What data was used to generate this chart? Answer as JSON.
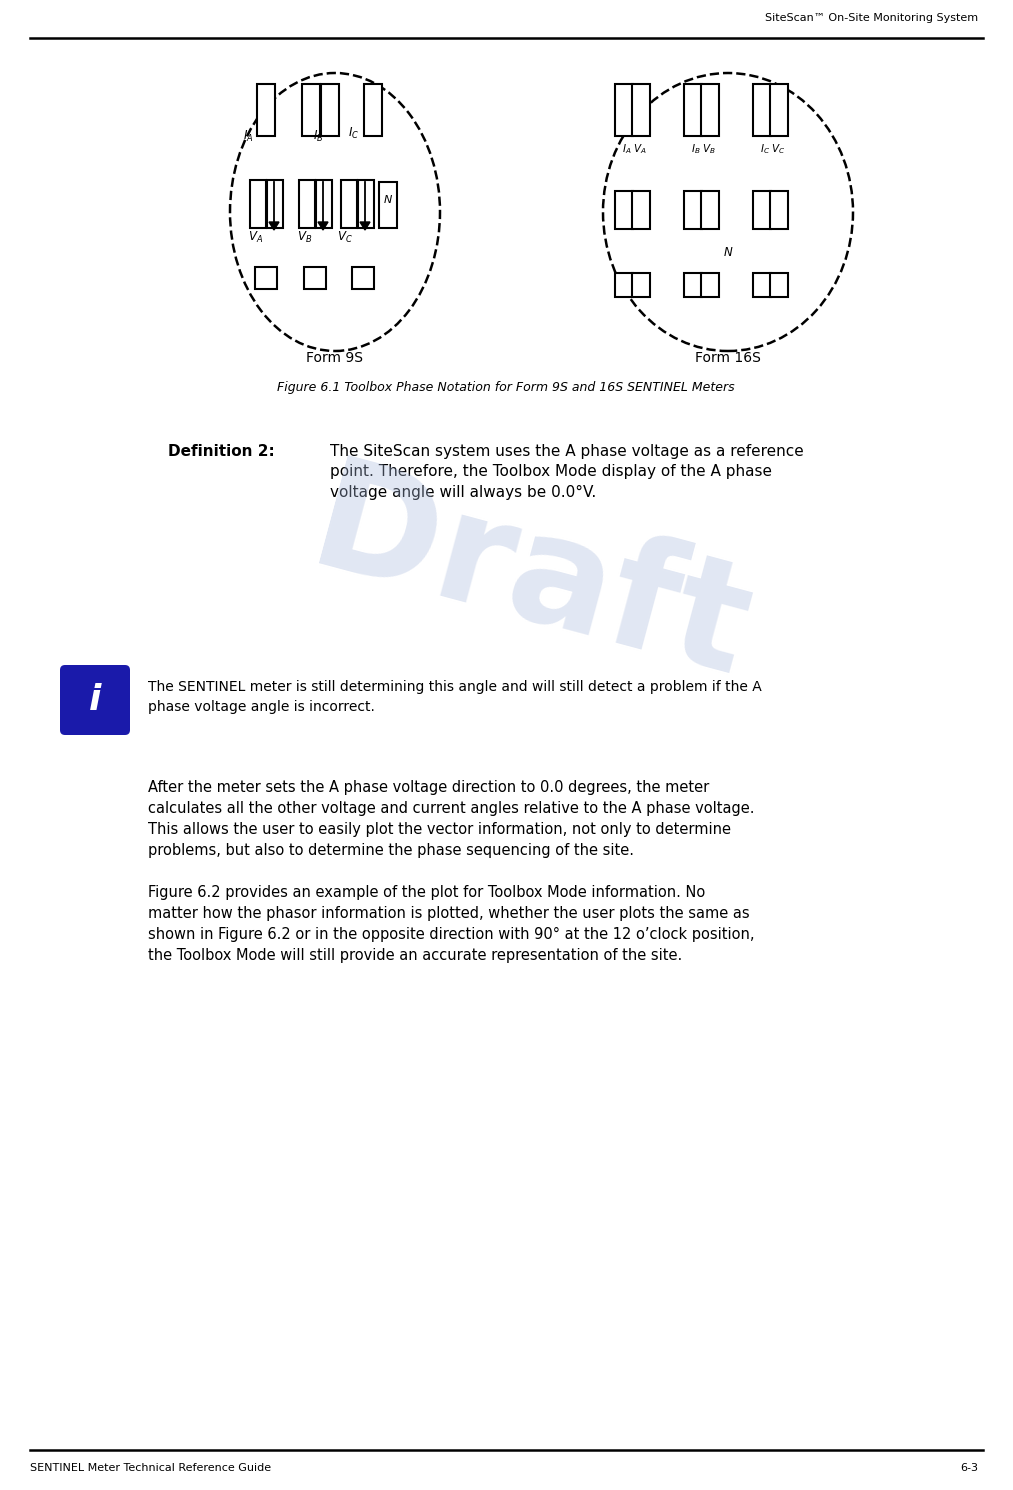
{
  "page_title_right": "SiteScan™ On-Site Monitoring System",
  "footer_left": "SENTINEL Meter Technical Reference Guide",
  "footer_right": "6-3",
  "figure_caption": "Figure 6.1 Toolbox Phase Notation for Form 9S and 16S SENTINEL Meters",
  "definition_label": "Definition 2:",
  "definition_text": "The SiteScan system uses the A phase voltage as a reference\npoint. Therefore, the Toolbox Mode display of the A phase\nvoltage angle will always be 0.0°V.",
  "info_text": "The SENTINEL meter is still determining this angle and will still detect a problem if the A\nphase voltage angle is incorrect.",
  "paragraph1": "After the meter sets the A phase voltage direction to 0.0 degrees, the meter\ncalculates all the other voltage and current angles relative to the A phase voltage.\nThis allows the user to easily plot the vector information, not only to determine\nproblems, but also to determine the phase sequencing of the site.",
  "paragraph2": "Figure 6.2 provides an example of the plot for Toolbox Mode information. No\nmatter how the phasor information is plotted, whether the user plots the same as\nshown in Figure 6.2 or in the opposite direction with 90° at the 12 o’clock position,\nthe Toolbox Mode will still provide an accurate representation of the site.",
  "form9s_label": "Form 9S",
  "form16s_label": "Form 16S",
  "draft_text": "Draft",
  "bg_color": "#ffffff",
  "text_color": "#000000",
  "info_circle_color": "#1a1aaa",
  "draft_color": "#aabbdd",
  "draft_alpha": 0.35
}
